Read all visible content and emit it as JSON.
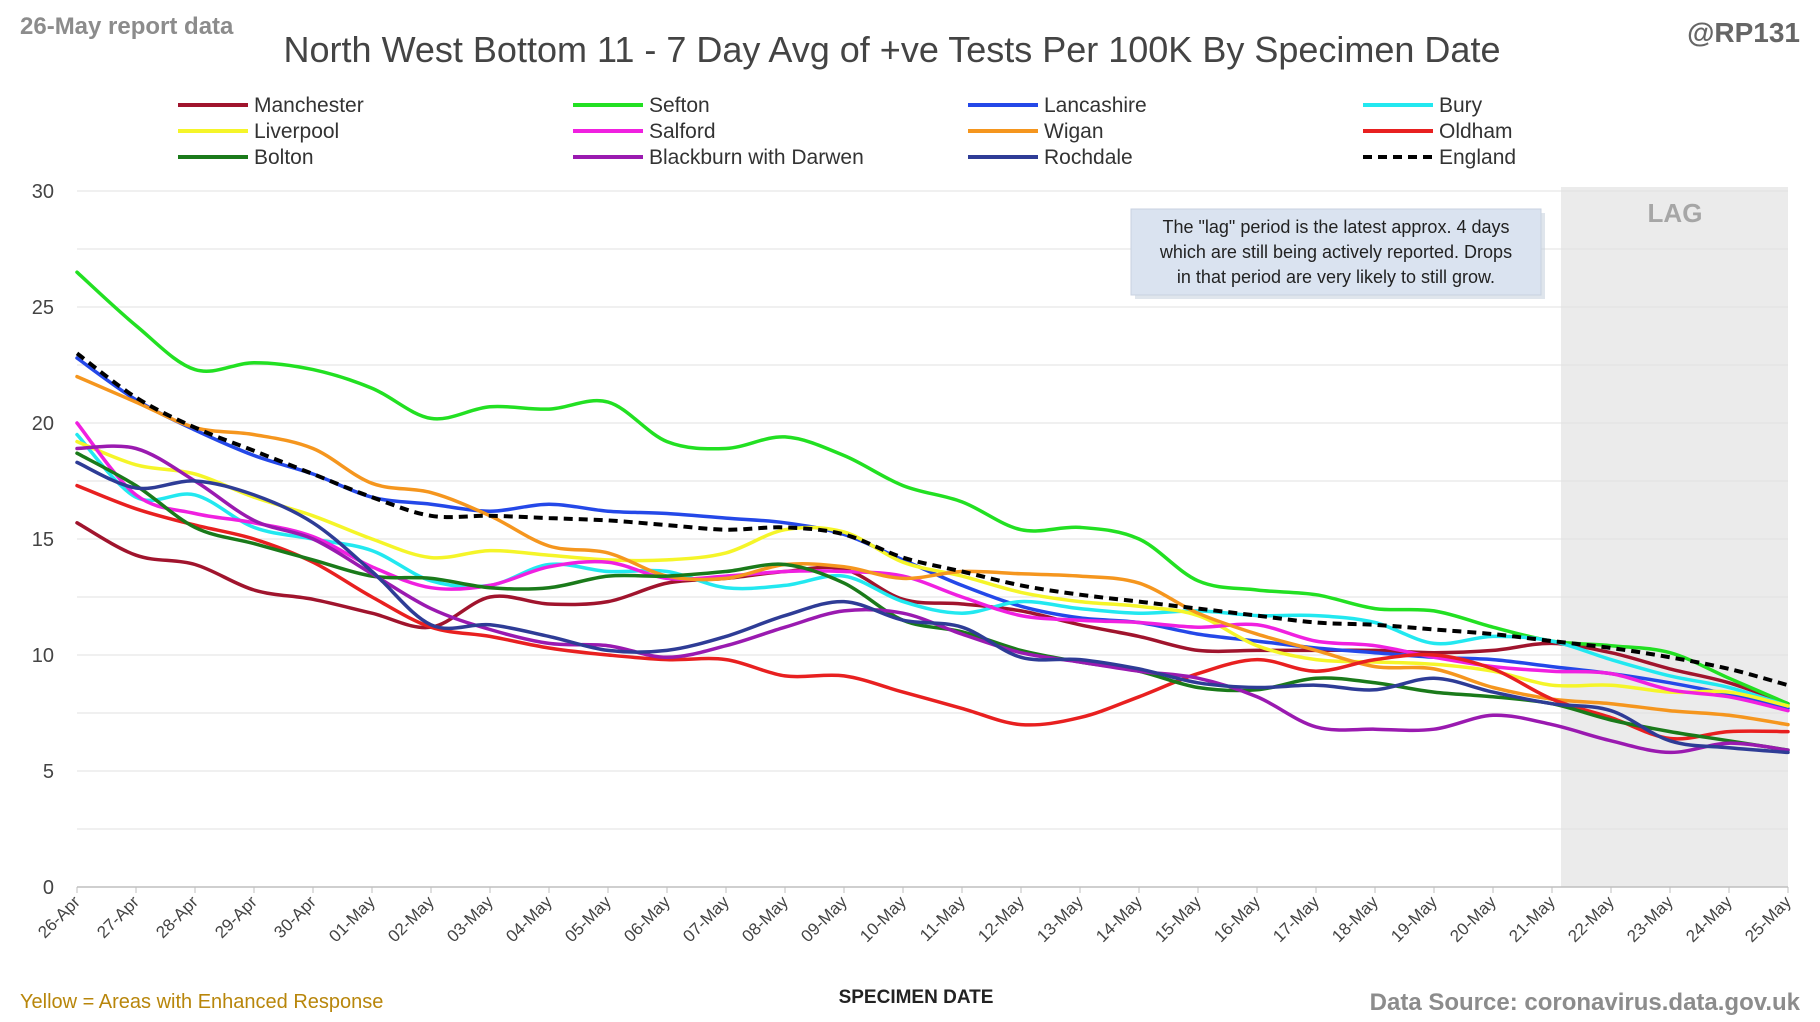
{
  "header": {
    "report_label": "26-May report data",
    "handle": "@RP131"
  },
  "footer": {
    "left_note": "Yellow = Areas with Enhanced Response",
    "source": "Data Source: coronavirus.data.gov.uk"
  },
  "annotation": {
    "lag_label": "LAG",
    "note_lines": [
      "The \"lag\" period is the latest approx. 4 days",
      "which are still being actively reported.  Drops",
      "in that period are very likely to still grow."
    ]
  },
  "chart_data": {
    "type": "line",
    "title": "North West Bottom 11 - 7 Day Avg of +ve Tests Per 100K By Specimen Date",
    "xlabel": "SPECIMEN DATE",
    "ylabel": "",
    "ylim": [
      0,
      30
    ],
    "yticks": [
      0,
      5,
      10,
      15,
      20,
      25,
      30
    ],
    "grid": "horizontal",
    "legend_position": "top",
    "lag_region": {
      "from": "21-May",
      "to": "25-May"
    },
    "categories": [
      "26-Apr",
      "27-Apr",
      "28-Apr",
      "29-Apr",
      "30-Apr",
      "01-May",
      "02-May",
      "03-May",
      "04-May",
      "05-May",
      "06-May",
      "07-May",
      "08-May",
      "09-May",
      "10-May",
      "11-May",
      "12-May",
      "13-May",
      "14-May",
      "15-May",
      "16-May",
      "17-May",
      "18-May",
      "19-May",
      "20-May",
      "21-May",
      "22-May",
      "23-May",
      "24-May",
      "25-May"
    ],
    "series": [
      {
        "name": "Manchester",
        "color": "#a0142d",
        "dash": false,
        "values": [
          15.7,
          14.3,
          13.9,
          12.8,
          12.4,
          11.8,
          11.2,
          12.5,
          12.2,
          12.3,
          13.1,
          13.3,
          13.6,
          13.7,
          12.4,
          12.2,
          11.9,
          11.3,
          10.8,
          10.2,
          10.2,
          10.2,
          10.2,
          10.1,
          10.2,
          10.5,
          10.1,
          9.4,
          8.8,
          7.9
        ]
      },
      {
        "name": "Sefton",
        "color": "#22e022",
        "dash": false,
        "values": [
          26.5,
          24.2,
          22.3,
          22.6,
          22.3,
          21.5,
          20.2,
          20.7,
          20.6,
          20.9,
          19.2,
          18.9,
          19.4,
          18.6,
          17.3,
          16.6,
          15.4,
          15.5,
          15.0,
          13.2,
          12.8,
          12.6,
          12.0,
          11.9,
          11.2,
          10.6,
          10.4,
          10.1,
          9.0,
          7.9
        ]
      },
      {
        "name": "Lancashire",
        "color": "#2448e8",
        "dash": false,
        "values": [
          22.8,
          21.0,
          19.7,
          18.6,
          17.8,
          16.8,
          16.5,
          16.2,
          16.5,
          16.2,
          16.1,
          15.9,
          15.7,
          15.2,
          14.1,
          13.0,
          12.1,
          11.6,
          11.4,
          10.9,
          10.6,
          10.3,
          10.1,
          9.9,
          9.8,
          9.5,
          9.2,
          8.8,
          8.3,
          7.7
        ]
      },
      {
        "name": "Bury",
        "color": "#22e8f0",
        "dash": false,
        "values": [
          19.5,
          16.8,
          16.9,
          15.5,
          15.0,
          14.5,
          13.2,
          13.0,
          13.9,
          13.6,
          13.6,
          12.9,
          13.0,
          13.4,
          12.3,
          11.8,
          12.3,
          12.0,
          11.8,
          11.9,
          11.7,
          11.7,
          11.4,
          10.5,
          10.8,
          10.6,
          9.8,
          9.1,
          8.6,
          7.8
        ]
      },
      {
        "name": "Liverpool",
        "color": "#f5f529",
        "dash": false,
        "values": [
          19.2,
          18.2,
          17.8,
          16.8,
          16.0,
          15.0,
          14.2,
          14.5,
          14.3,
          14.1,
          14.1,
          14.4,
          15.4,
          15.3,
          14.0,
          13.4,
          12.7,
          12.3,
          12.1,
          11.7,
          10.4,
          9.8,
          9.7,
          9.6,
          9.3,
          8.7,
          8.7,
          8.4,
          8.4,
          7.8
        ]
      },
      {
        "name": "Salford",
        "color": "#f020e0",
        "dash": false,
        "values": [
          20.0,
          16.9,
          16.1,
          15.7,
          15.1,
          13.8,
          12.9,
          13.0,
          13.8,
          14.0,
          13.3,
          13.4,
          13.6,
          13.6,
          13.4,
          12.5,
          11.7,
          11.5,
          11.4,
          11.2,
          11.3,
          10.6,
          10.4,
          9.9,
          9.5,
          9.3,
          9.2,
          8.5,
          8.2,
          7.6
        ]
      },
      {
        "name": "Wigan",
        "color": "#f5961e",
        "dash": false,
        "values": [
          22.0,
          20.9,
          19.8,
          19.5,
          18.9,
          17.4,
          17.0,
          16.0,
          14.7,
          14.4,
          13.4,
          13.3,
          13.9,
          13.8,
          13.3,
          13.6,
          13.5,
          13.4,
          13.1,
          11.8,
          10.9,
          10.2,
          9.5,
          9.4,
          8.6,
          8.1,
          7.9,
          7.6,
          7.4,
          7.0
        ]
      },
      {
        "name": "Oldham",
        "color": "#e82020",
        "dash": false,
        "values": [
          17.3,
          16.3,
          15.6,
          15.0,
          14.0,
          12.5,
          11.2,
          10.8,
          10.3,
          10.0,
          9.8,
          9.8,
          9.1,
          9.1,
          8.4,
          7.7,
          7.0,
          7.3,
          8.2,
          9.2,
          9.8,
          9.3,
          9.8,
          10.0,
          9.4,
          8.1,
          7.3,
          6.4,
          6.7,
          6.7
        ]
      },
      {
        "name": "Bolton",
        "color": "#1a7a1a",
        "dash": false,
        "values": [
          18.7,
          17.3,
          15.5,
          14.8,
          14.1,
          13.4,
          13.3,
          12.9,
          12.9,
          13.4,
          13.4,
          13.6,
          13.9,
          13.1,
          11.5,
          11.0,
          10.2,
          9.7,
          9.3,
          8.6,
          8.5,
          9.0,
          8.8,
          8.4,
          8.2,
          7.9,
          7.2,
          6.7,
          6.3,
          5.9
        ]
      },
      {
        "name": "Blackburn with Darwen",
        "color": "#9a1ab0",
        "dash": false,
        "values": [
          18.9,
          18.9,
          17.5,
          15.8,
          15.0,
          13.5,
          12.0,
          11.1,
          10.5,
          10.4,
          9.9,
          10.4,
          11.2,
          11.9,
          11.8,
          10.9,
          10.1,
          9.7,
          9.3,
          9.0,
          8.2,
          6.9,
          6.8,
          6.8,
          7.4,
          7.0,
          6.3,
          5.8,
          6.2,
          5.9
        ]
      },
      {
        "name": "Rochdale",
        "color": "#2e3c96",
        "dash": false,
        "values": [
          18.3,
          17.2,
          17.5,
          16.9,
          15.7,
          13.6,
          11.3,
          11.3,
          10.8,
          10.2,
          10.2,
          10.8,
          11.7,
          12.3,
          11.5,
          11.2,
          9.9,
          9.8,
          9.4,
          8.8,
          8.6,
          8.7,
          8.5,
          9.0,
          8.4,
          7.9,
          7.6,
          6.3,
          6.0,
          5.8
        ]
      },
      {
        "name": "England",
        "color": "#000000",
        "dash": true,
        "values": [
          23.0,
          21.1,
          19.8,
          18.8,
          17.8,
          16.8,
          16.0,
          16.0,
          15.9,
          15.8,
          15.6,
          15.4,
          15.5,
          15.2,
          14.2,
          13.6,
          13.0,
          12.6,
          12.3,
          12.0,
          11.7,
          11.4,
          11.3,
          11.1,
          10.9,
          10.6,
          10.3,
          9.9,
          9.4,
          8.7
        ]
      }
    ]
  }
}
